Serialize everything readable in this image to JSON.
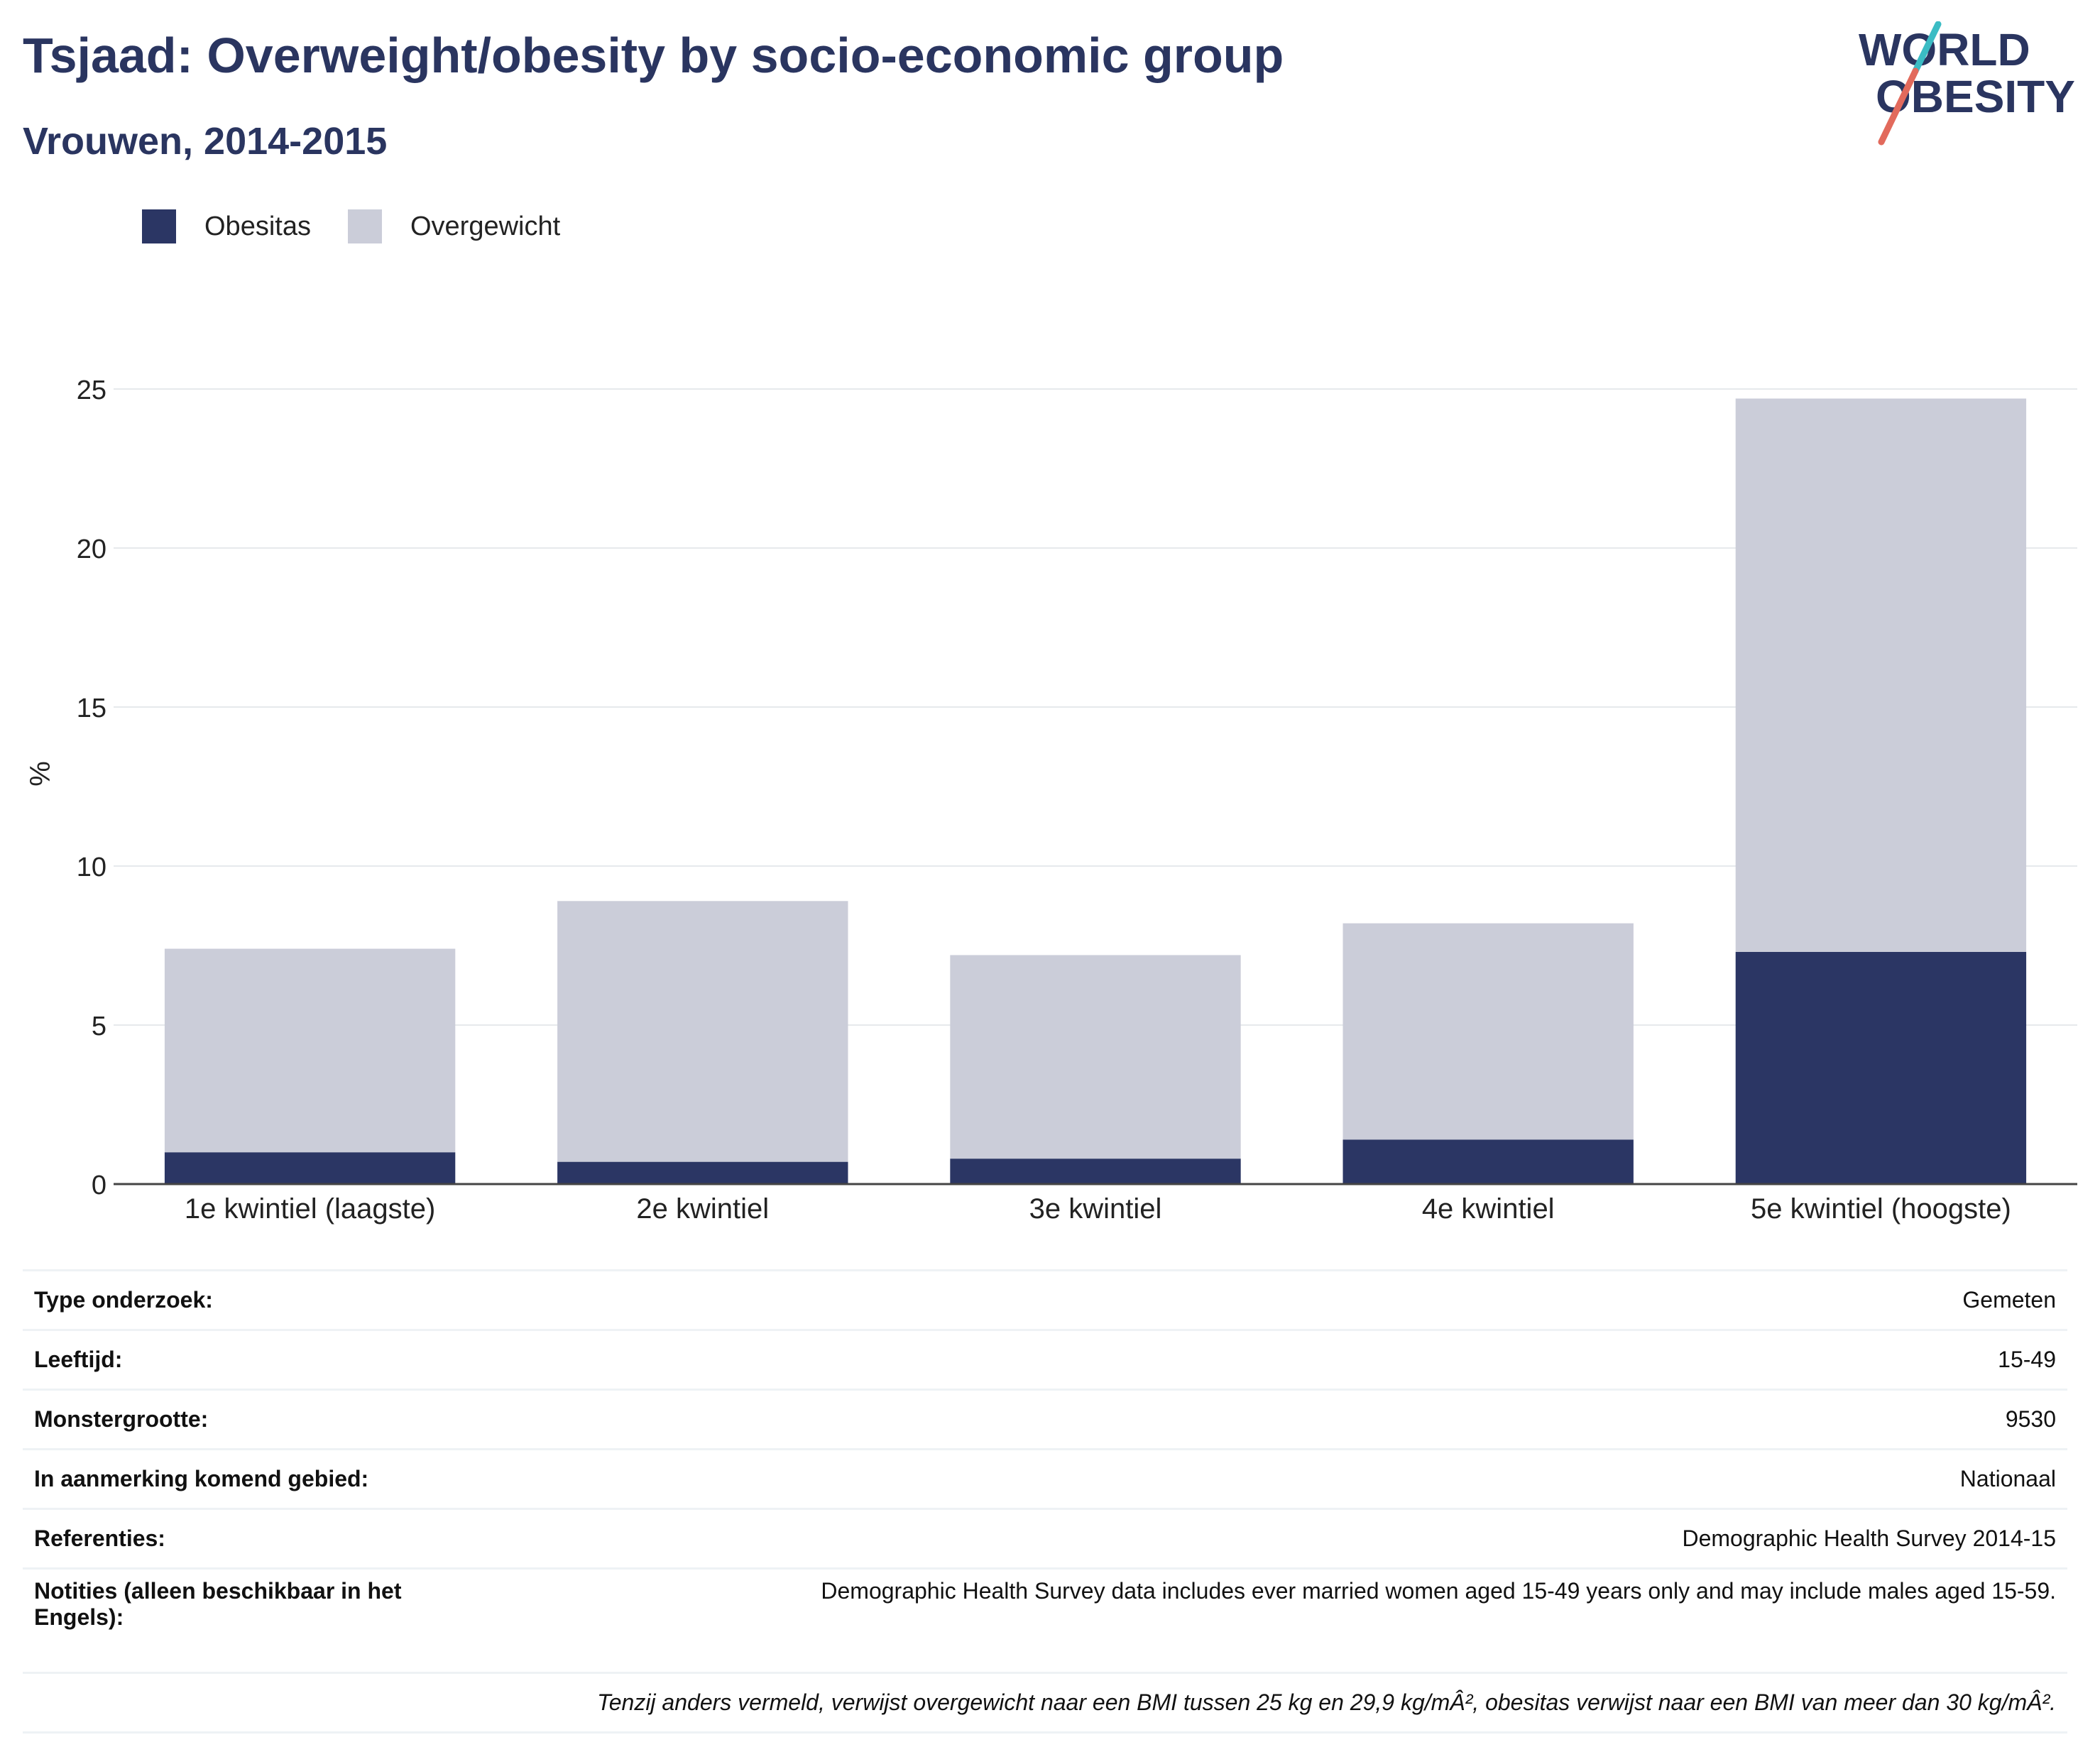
{
  "title": "Tsjaad: Overweight/obesity by socio-economic group",
  "subtitle": "Vrouwen, 2014-2015",
  "logo": {
    "line1": "WORLD",
    "line2": "OBESITY"
  },
  "colors": {
    "obesity": "#2b3664",
    "overweight": "#cbcdd9",
    "text": "#2a3560",
    "logo_teal": "#3bbcc4",
    "logo_red": "#e26a5c"
  },
  "legend": [
    {
      "label": "Obesitas",
      "color": "#2b3664"
    },
    {
      "label": "Overgewicht",
      "color": "#cbcdd9"
    }
  ],
  "chart_data": {
    "type": "bar",
    "stacked": true,
    "categories": [
      "1e kwintiel (laagste)",
      "2e kwintiel",
      "3e kwintiel",
      "4e kwintiel",
      "5e kwintiel (hoogste)"
    ],
    "series": [
      {
        "name": "Obesitas",
        "values": [
          1.0,
          0.7,
          0.8,
          1.4,
          7.3
        ]
      },
      {
        "name": "Overgewicht",
        "values": [
          6.4,
          8.2,
          6.4,
          6.8,
          17.4
        ]
      }
    ],
    "ylabel": "%",
    "ylim": [
      0,
      25
    ],
    "yticks": [
      0,
      5,
      10,
      15,
      20,
      25
    ],
    "grid": true,
    "legend_position": "top-left"
  },
  "meta": [
    {
      "label": "Type onderzoek:",
      "value": "Gemeten"
    },
    {
      "label": "Leeftijd:",
      "value": "15-49"
    },
    {
      "label": "Monstergrootte:",
      "value": "9530"
    },
    {
      "label": "In aanmerking komend gebied:",
      "value": "Nationaal"
    },
    {
      "label": "Referenties:",
      "value": "Demographic Health Survey 2014-15"
    },
    {
      "label": "Notities (alleen beschikbaar in het Engels):",
      "value": "Demographic Health Survey data includes ever married women aged 15-49 years only and may include males aged 15-59."
    }
  ],
  "footnote": "Tenzij anders vermeld, verwijst overgewicht naar een BMI tussen 25 kg en 29,9 kg/mÂ², obesitas verwijst naar een BMI van meer dan 30 kg/mÂ²."
}
